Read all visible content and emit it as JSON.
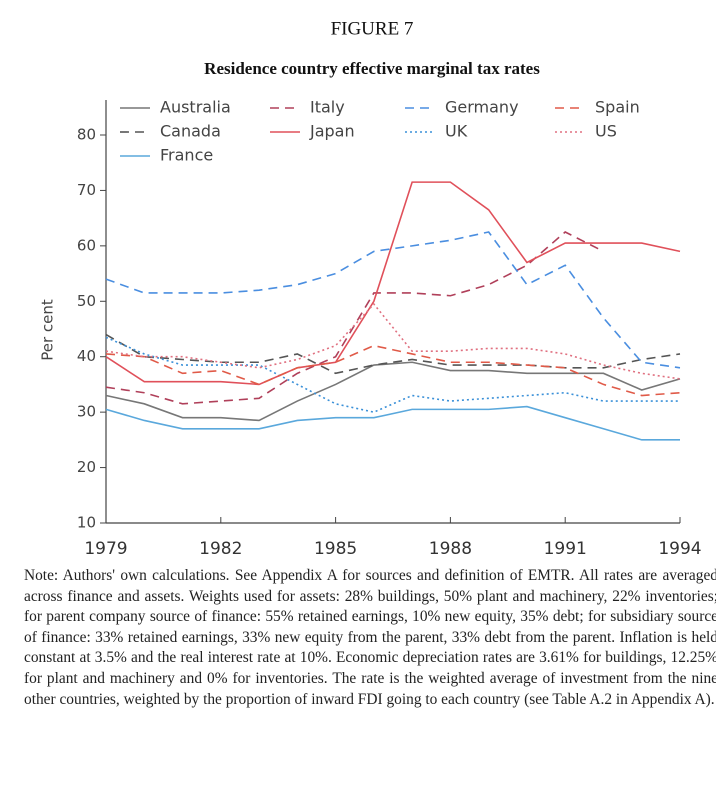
{
  "figure_label": "FIGURE 7",
  "chart_data": {
    "type": "line",
    "title": "Residence country effective marginal tax rates",
    "ylabel": "Per cent",
    "x": [
      1979,
      1980,
      1981,
      1982,
      1983,
      1984,
      1985,
      1986,
      1987,
      1988,
      1989,
      1990,
      1991,
      1992,
      1993,
      1994
    ],
    "xlim": [
      1979,
      1994
    ],
    "xticks": [
      1979,
      1982,
      1985,
      1988,
      1991,
      1994
    ],
    "ylim": [
      10,
      80
    ],
    "yticks": [
      10,
      20,
      30,
      40,
      50,
      60,
      70,
      80
    ],
    "grid": false,
    "series": [
      {
        "name": "Australia",
        "color": "#777777",
        "dash": "solid",
        "values": [
          33,
          31.5,
          29,
          29,
          28.5,
          32,
          35,
          38.5,
          39,
          37.5,
          37.5,
          37,
          37,
          37,
          34,
          36
        ]
      },
      {
        "name": "Canada",
        "color": "#555555",
        "dash": "dashed",
        "values": [
          44,
          40,
          39.5,
          39,
          39,
          40.5,
          37,
          38.5,
          39.5,
          38.5,
          38.5,
          38.5,
          38,
          38,
          39.5,
          40.5
        ]
      },
      {
        "name": "France",
        "color": "#5aa8dc",
        "dash": "solid",
        "values": [
          30.5,
          28.5,
          27,
          27,
          27,
          28.5,
          29,
          29,
          30.5,
          30.5,
          30.5,
          31,
          29,
          27,
          25,
          25
        ]
      },
      {
        "name": "Italy",
        "color": "#b0405a",
        "dash": "dashed",
        "values": [
          34.5,
          33.5,
          31.5,
          32,
          32.5,
          37,
          40,
          51.5,
          51.5,
          51,
          53,
          56.5,
          62.5,
          59,
          null,
          null
        ]
      },
      {
        "name": "Japan",
        "color": "#e0505a",
        "dash": "solid",
        "values": [
          40,
          35.5,
          35.5,
          35.5,
          35,
          38,
          39,
          50,
          71.5,
          71.5,
          66.5,
          57,
          60.5,
          60.5,
          60.5,
          59
        ]
      },
      {
        "name": "Germany",
        "color": "#4a8ee0",
        "dash": "dashed",
        "values": [
          54,
          51.5,
          51.5,
          51.5,
          52,
          53,
          55,
          59,
          60,
          61,
          62.5,
          53,
          56.5,
          47,
          39,
          38
        ]
      },
      {
        "name": "UK",
        "color": "#3a90d8",
        "dash": "dotted",
        "values": [
          43.5,
          40.5,
          38.5,
          38.5,
          38.5,
          35,
          31.5,
          30,
          33,
          32,
          32.5,
          33,
          33.5,
          32,
          32,
          32
        ]
      },
      {
        "name": "Spain",
        "color": "#e05a48",
        "dash": "dashed",
        "values": [
          40.5,
          40,
          37,
          37.5,
          35,
          38,
          39,
          42,
          40.5,
          39,
          39,
          38.5,
          38,
          35,
          33,
          33.5
        ]
      },
      {
        "name": "US",
        "color": "#e07080",
        "dash": "dotted",
        "values": [
          41,
          40,
          40,
          39,
          38,
          39.5,
          42,
          49.5,
          41,
          41,
          41.5,
          41.5,
          40.5,
          38.5,
          37,
          36
        ]
      }
    ]
  },
  "note": "Note: Authors' own calculations. See Appendix A for sources and definition of EMTR. All rates are averaged across finance and assets. Weights used for assets: 28% buildings, 50% plant and machinery, 22% inventories; for parent company source of finance: 55% retained earnings, 10% new equity, 35% debt; for subsidiary source of finance: 33% retained earnings, 33% new equity from the parent, 33% debt from the parent. Inflation is held constant at 3.5% and the real interest rate at 10%. Economic depreciation rates are 3.61% for buildings, 12.25% for plant and machinery and 0% for inventories. The rate is the weighted average of investment from the nine other countries, weighted by the proportion of inward FDI going to each country (see Table A.2 in Appendix A)."
}
